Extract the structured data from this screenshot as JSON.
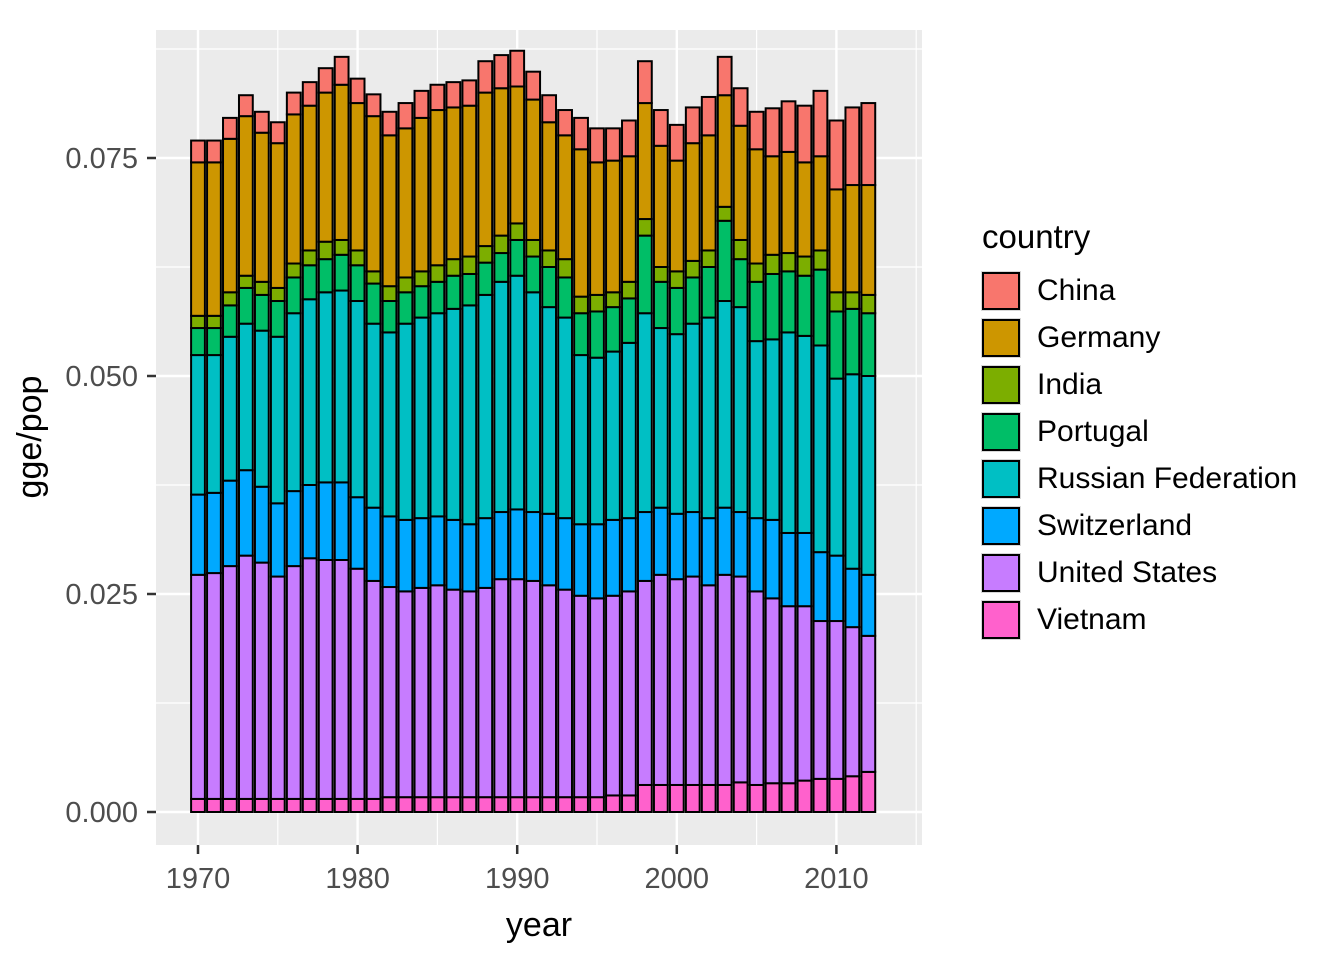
{
  "chart_data": {
    "type": "bar",
    "stacked": true,
    "title": "",
    "xlabel": "year",
    "ylabel": "gge/pop",
    "legend_title": "country",
    "legend_position": "right",
    "grid": true,
    "panel_style": "ggplot-gray",
    "x": [
      1970,
      1971,
      1972,
      1973,
      1974,
      1975,
      1976,
      1977,
      1978,
      1979,
      1980,
      1981,
      1982,
      1983,
      1984,
      1985,
      1986,
      1987,
      1988,
      1989,
      1990,
      1991,
      1992,
      1993,
      1994,
      1995,
      1996,
      1997,
      1998,
      1999,
      2000,
      2001,
      2002,
      2003,
      2004,
      2005,
      2006,
      2007,
      2008,
      2009,
      2010,
      2011,
      2012
    ],
    "x_ticks": [
      1970,
      1980,
      1990,
      2000,
      2010
    ],
    "x_minor_ticks": [
      1975,
      1985,
      1995,
      2005,
      2015
    ],
    "y_ticks": [
      0,
      0.025,
      0.05,
      0.075
    ],
    "y_tick_labels": [
      "0.000",
      "0.025",
      "0.050",
      "0.075"
    ],
    "ylim": [
      0,
      0.0875
    ],
    "stack_order": "bottom_to_top",
    "series": [
      {
        "name": "Vietnam",
        "color": "#FF61CC",
        "values": [
          0.0015,
          0.0015,
          0.0015,
          0.0015,
          0.0015,
          0.0015,
          0.0015,
          0.0015,
          0.0015,
          0.0015,
          0.0015,
          0.0015,
          0.0017,
          0.0017,
          0.0017,
          0.0017,
          0.0017,
          0.0017,
          0.0017,
          0.0017,
          0.0017,
          0.0017,
          0.0017,
          0.0017,
          0.0017,
          0.0017,
          0.0019,
          0.0019,
          0.0031,
          0.0031,
          0.0031,
          0.0031,
          0.0031,
          0.0031,
          0.0034,
          0.0031,
          0.0033,
          0.0033,
          0.0036,
          0.0038,
          0.0038,
          0.0041,
          0.0046
        ]
      },
      {
        "name": "United States",
        "color": "#C77CFF",
        "values": [
          0.0257,
          0.0259,
          0.0267,
          0.0279,
          0.0271,
          0.0255,
          0.0267,
          0.0276,
          0.0274,
          0.0274,
          0.0264,
          0.025,
          0.0241,
          0.0236,
          0.024,
          0.0243,
          0.0238,
          0.0236,
          0.024,
          0.025,
          0.025,
          0.0248,
          0.0243,
          0.0238,
          0.0231,
          0.0228,
          0.0229,
          0.0234,
          0.0234,
          0.0241,
          0.0236,
          0.0239,
          0.0229,
          0.0241,
          0.0236,
          0.0222,
          0.0212,
          0.0203,
          0.02,
          0.0181,
          0.0181,
          0.0171,
          0.0156
        ]
      },
      {
        "name": "Switzerland",
        "color": "#00A9FF",
        "values": [
          0.0092,
          0.0092,
          0.0098,
          0.0098,
          0.0087,
          0.0084,
          0.0086,
          0.0084,
          0.0089,
          0.0089,
          0.0082,
          0.0084,
          0.0081,
          0.0082,
          0.008,
          0.0079,
          0.008,
          0.0077,
          0.008,
          0.0077,
          0.008,
          0.0079,
          0.0082,
          0.0082,
          0.0082,
          0.0085,
          0.0087,
          0.0084,
          0.0079,
          0.0077,
          0.0075,
          0.0074,
          0.0077,
          0.0077,
          0.0074,
          0.0084,
          0.009,
          0.0084,
          0.0084,
          0.0079,
          0.0075,
          0.0067,
          0.007
        ]
      },
      {
        "name": "Russian Federation",
        "color": "#00BFC4",
        "values": [
          0.016,
          0.0158,
          0.0165,
          0.0168,
          0.0179,
          0.0191,
          0.0204,
          0.0213,
          0.0218,
          0.022,
          0.0225,
          0.0211,
          0.0211,
          0.0225,
          0.023,
          0.0233,
          0.0242,
          0.0251,
          0.0256,
          0.0264,
          0.0268,
          0.0252,
          0.0237,
          0.023,
          0.0194,
          0.0191,
          0.0193,
          0.0201,
          0.0228,
          0.0206,
          0.0206,
          0.0216,
          0.023,
          0.0237,
          0.0235,
          0.0203,
          0.0207,
          0.023,
          0.0226,
          0.0237,
          0.0203,
          0.0223,
          0.0228
        ]
      },
      {
        "name": "Portugal",
        "color": "#00BE67",
        "values": [
          0.0031,
          0.0031,
          0.0036,
          0.0041,
          0.0041,
          0.0041,
          0.0041,
          0.0039,
          0.0038,
          0.0041,
          0.0041,
          0.0046,
          0.0036,
          0.0036,
          0.0036,
          0.0036,
          0.0038,
          0.0036,
          0.0037,
          0.0033,
          0.0041,
          0.0041,
          0.0046,
          0.0046,
          0.0048,
          0.0053,
          0.0051,
          0.0051,
          0.0089,
          0.0053,
          0.0053,
          0.0053,
          0.0058,
          0.0092,
          0.0055,
          0.0068,
          0.0075,
          0.007,
          0.0069,
          0.0087,
          0.0077,
          0.0075,
          0.0072
        ]
      },
      {
        "name": "India",
        "color": "#7CAE00",
        "values": [
          0.0014,
          0.0014,
          0.0015,
          0.0014,
          0.0015,
          0.0015,
          0.0016,
          0.0017,
          0.002,
          0.0017,
          0.0017,
          0.0014,
          0.0017,
          0.0017,
          0.0017,
          0.0019,
          0.0019,
          0.002,
          0.0019,
          0.002,
          0.0019,
          0.0019,
          0.0019,
          0.0021,
          0.0019,
          0.0019,
          0.0017,
          0.0019,
          0.0019,
          0.0017,
          0.0019,
          0.0019,
          0.0019,
          0.0016,
          0.0022,
          0.0021,
          0.0022,
          0.0021,
          0.0022,
          0.0022,
          0.0022,
          0.0019,
          0.0021
        ]
      },
      {
        "name": "Germany",
        "color": "#CD9600",
        "values": [
          0.0176,
          0.0176,
          0.0176,
          0.0183,
          0.0171,
          0.0166,
          0.0171,
          0.0166,
          0.0171,
          0.0178,
          0.0169,
          0.0178,
          0.0173,
          0.0171,
          0.0176,
          0.0178,
          0.0174,
          0.0173,
          0.0176,
          0.0169,
          0.0157,
          0.0161,
          0.0147,
          0.0142,
          0.0169,
          0.0152,
          0.0151,
          0.0144,
          0.0133,
          0.0139,
          0.0127,
          0.0135,
          0.0132,
          0.0128,
          0.0131,
          0.0131,
          0.0113,
          0.0116,
          0.0108,
          0.0108,
          0.0118,
          0.0123,
          0.0126
        ]
      },
      {
        "name": "China",
        "color": "#F8766D",
        "values": [
          0.0025,
          0.0025,
          0.0024,
          0.0024,
          0.0024,
          0.0024,
          0.0025,
          0.0027,
          0.0028,
          0.0032,
          0.0028,
          0.0025,
          0.0027,
          0.0029,
          0.0031,
          0.0029,
          0.0029,
          0.0029,
          0.0036,
          0.0038,
          0.0041,
          0.0032,
          0.0031,
          0.0029,
          0.0036,
          0.0039,
          0.0037,
          0.0041,
          0.0048,
          0.0041,
          0.0041,
          0.0041,
          0.0044,
          0.0044,
          0.0043,
          0.0043,
          0.0055,
          0.0058,
          0.0065,
          0.0075,
          0.0079,
          0.0089,
          0.0094
        ]
      }
    ],
    "legend_order": [
      "China",
      "Germany",
      "India",
      "Portugal",
      "Russian Federation",
      "Switzerland",
      "United States",
      "Vietnam"
    ]
  },
  "theme": {
    "panel_bg": "#EBEBEB",
    "grid_color": "#FFFFFF",
    "tick_text_color": "#4D4D4D",
    "axis_title_color": "#000000",
    "bar_outline": "#000000",
    "tick_mark_color": "#333333"
  }
}
